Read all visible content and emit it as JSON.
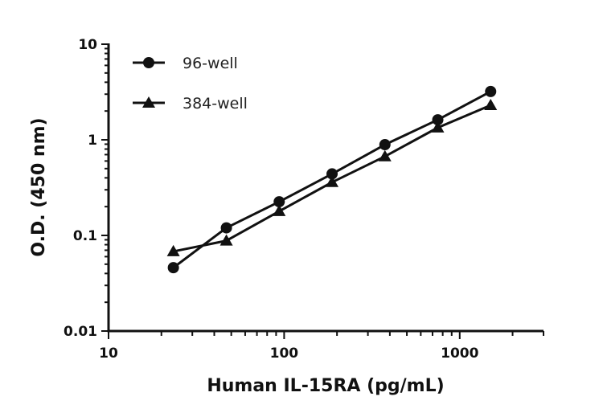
{
  "chart_data": {
    "type": "line",
    "title": "",
    "xlabel": "Human IL-15RA (pg/mL)",
    "ylabel": "O.D. (450 nm)",
    "xscale": "log",
    "yscale": "log",
    "xlim": [
      10,
      3000
    ],
    "ylim": [
      0.01,
      10
    ],
    "xticks": [
      {
        "v": 10,
        "label": "10"
      },
      {
        "v": 100,
        "label": "100"
      },
      {
        "v": 1000,
        "label": "1000"
      }
    ],
    "yticks": [
      {
        "v": 0.01,
        "label": "0.01"
      },
      {
        "v": 0.1,
        "label": "0.1"
      },
      {
        "v": 1,
        "label": "1"
      },
      {
        "v": 10,
        "label": "10"
      }
    ],
    "grid": false,
    "legend_position": "top-left",
    "x": [
      23.4,
      46.9,
      93.75,
      187.5,
      375,
      750,
      1500
    ],
    "series": [
      {
        "name": "96-well",
        "marker": "circle",
        "color": "#111111",
        "values": [
          0.046,
          0.12,
          0.225,
          0.44,
          0.89,
          1.62,
          3.2
        ]
      },
      {
        "name": "384-well",
        "marker": "triangle",
        "color": "#111111",
        "values": [
          0.068,
          0.088,
          0.179,
          0.36,
          0.67,
          1.34,
          2.3
        ]
      }
    ]
  }
}
